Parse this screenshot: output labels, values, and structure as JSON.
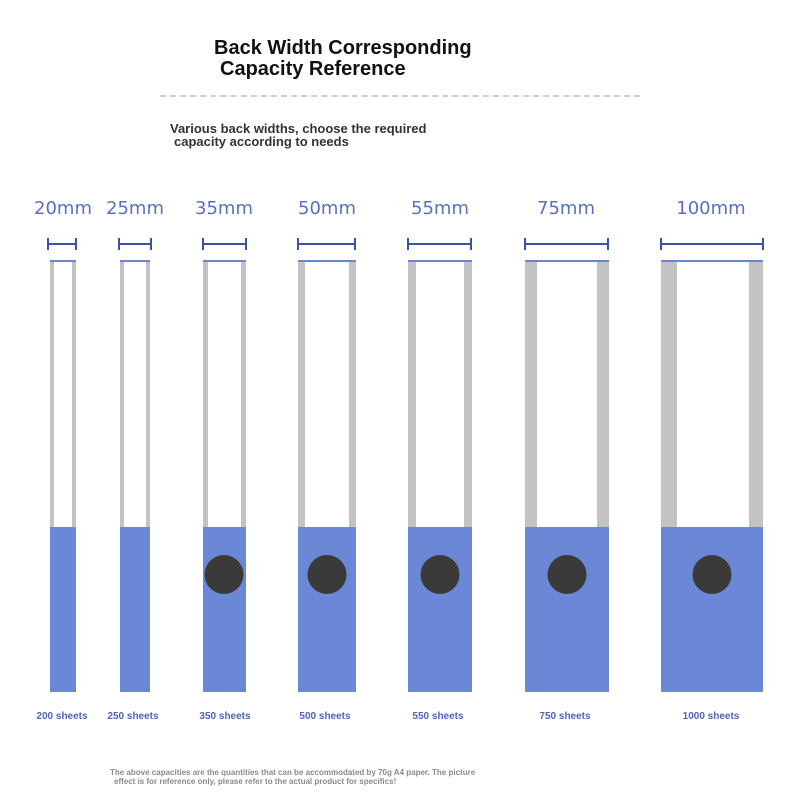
{
  "header": {
    "title_line1": "Back Width Corresponding",
    "title_line2": "Capacity Reference",
    "subtitle_line1": "Various back widths, choose the required",
    "subtitle_line2": "capacity according to needs"
  },
  "binders": [
    {
      "width": "20mm",
      "capacity": "200 sheets",
      "has_ring": false
    },
    {
      "width": "25mm",
      "capacity": "250 sheets",
      "has_ring": false
    },
    {
      "width": "35mm",
      "capacity": "350 sheets",
      "has_ring": true
    },
    {
      "width": "50mm",
      "capacity": "500 sheets",
      "has_ring": true
    },
    {
      "width": "55mm",
      "capacity": "550 sheets",
      "has_ring": true
    },
    {
      "width": "75mm",
      "capacity": "750 sheets",
      "has_ring": true
    },
    {
      "width": "100mm",
      "capacity": "1000 sheets",
      "has_ring": true
    }
  ],
  "footnote": {
    "line1": "The above capacities are the quantities that can be accommodated by 70g A4 paper. The picture",
    "line2": "effect is for reference only, please refer to the actual product for specifics!"
  },
  "colors": {
    "accent_blue": "#5b6fc1",
    "label_block": "#6b88d6",
    "spine_gray": "#c3c3c3",
    "ring_dark": "#3a3a3a"
  }
}
